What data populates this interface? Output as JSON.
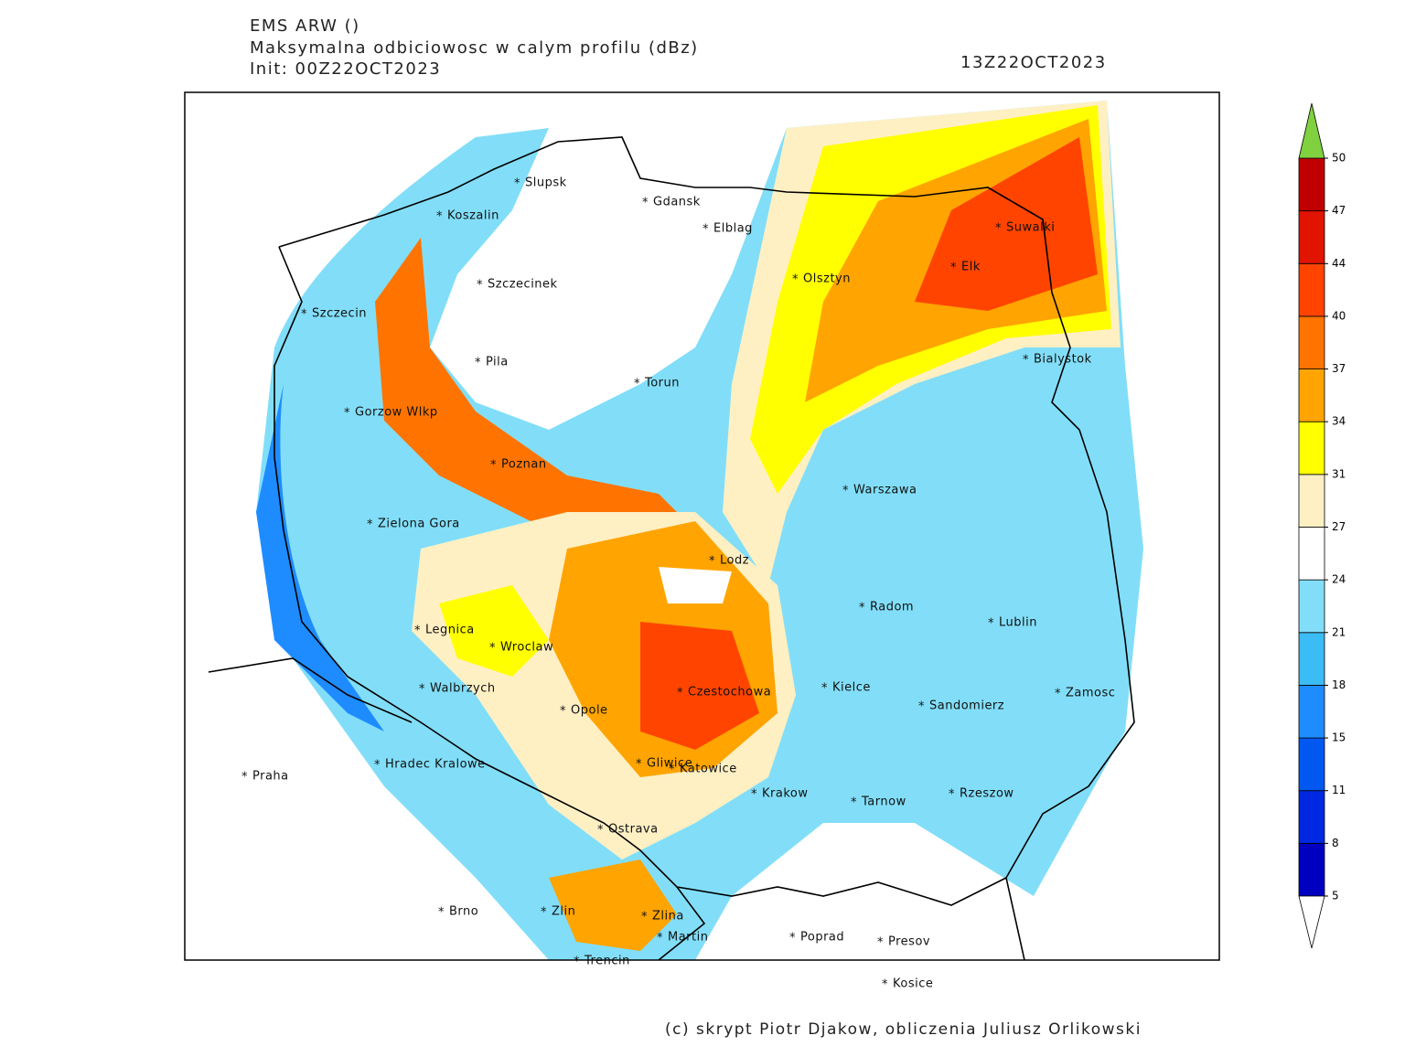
{
  "header": {
    "model": "EMS ARW ()",
    "field": "Maksymalna odbiciowosc w calym profilu (dBz)",
    "init": "Init: 00Z22OCT2023",
    "valid": "13Z22OCT2023"
  },
  "cities": [
    "Koszalin",
    "Slupsk",
    "Gdansk",
    "Elblag",
    "Olsztyn",
    "Suwalki",
    "Elk",
    "Szczecinek",
    "Szczecin",
    "Pila",
    "Torun",
    "Bialystok",
    "Gorzow Wlkp",
    "Poznan",
    "Warszawa",
    "Zielona Gora",
    "Lodz",
    "Radom",
    "Lublin",
    "Legnica",
    "Wroclaw",
    "Walbrzych",
    "Czestochowa",
    "Kielce",
    "Zamosc",
    "Opole",
    "Sandomierz",
    "Praha",
    "Hradec Kralowe",
    "Gliwice",
    "Katowice",
    "Krakow",
    "Tarnow",
    "Rzeszow",
    "Ostrava",
    "Brno",
    "Zlin",
    "Zlina",
    "Martin",
    "Poprad",
    "Presov",
    "Trencin",
    "Kosice"
  ],
  "colorbar": {
    "levels": [
      5,
      8,
      11,
      15,
      18,
      21,
      24,
      27,
      31,
      34,
      37,
      40,
      44,
      47,
      50
    ],
    "colors": [
      "#0000c0",
      "#0028e0",
      "#0058f0",
      "#1e8cff",
      "#3cbcf4",
      "#82def8",
      "#ffffff",
      "#fff0c4",
      "#ffff00",
      "#ffa400",
      "#ff7400",
      "#ff4400",
      "#e01400",
      "#c00000"
    ],
    "over_color": "#80d040",
    "under_color": "#ffffff"
  },
  "footer": "(c) skrypt Piotr Djakow, obliczenia Juliusz Orlikowski"
}
